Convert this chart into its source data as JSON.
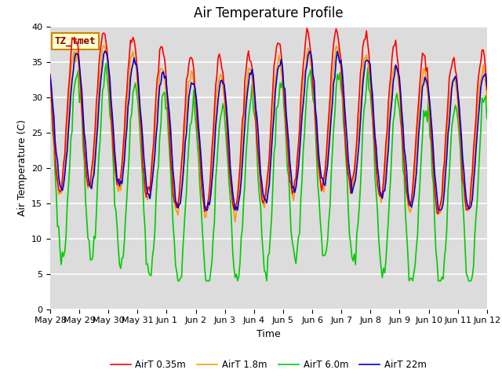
{
  "title": "Air Temperature Profile",
  "xlabel": "Time",
  "ylabel": "Air Temperature (C)",
  "annotation": "TZ_tmet",
  "ylim": [
    0,
    40
  ],
  "background_color": "#dcdcdc",
  "plot_bg_color": "#dcdcdc",
  "fig_bg_color": "#ffffff",
  "grid_color": "#ffffff",
  "colors": {
    "AirT 0.35m": "#ff0000",
    "AirT 1.8m": "#ff9900",
    "AirT 6.0m": "#00cc00",
    "AirT 22m": "#0000cc"
  },
  "legend_labels": [
    "AirT 0.35m",
    "AirT 1.8m",
    "AirT 6.0m",
    "AirT 22m"
  ],
  "xtick_labels": [
    "May 28",
    "May 29",
    "May 30",
    "May 31",
    "Jun 1",
    "Jun 2",
    "Jun 3",
    "Jun 4",
    "Jun 5",
    "Jun 6",
    "Jun 7",
    "Jun 8",
    "Jun 9",
    "Jun 10",
    "Jun 11",
    "Jun 12"
  ],
  "annotation_bg": "#ffffcc",
  "annotation_border": "#cc8800",
  "annotation_text_color": "#880000",
  "title_fontsize": 12,
  "label_fontsize": 9,
  "tick_fontsize": 8,
  "line_width": 1.2
}
